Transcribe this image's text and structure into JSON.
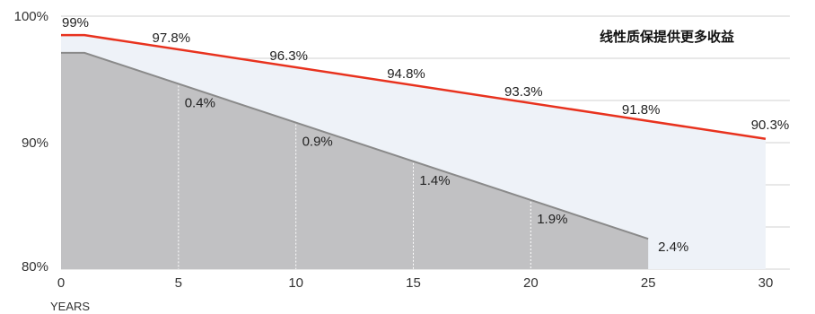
{
  "chart_data": {
    "type": "area",
    "title": "线性质保提供更多收益",
    "xlabel": "YEARS",
    "ylabel": "",
    "xlim": [
      0,
      30
    ],
    "ylim": [
      80,
      100
    ],
    "x_ticks": [
      "0",
      "5",
      "10",
      "15",
      "20",
      "25",
      "30"
    ],
    "y_ticks": [
      "80%",
      "90%",
      "100%"
    ],
    "grid": "horizontal",
    "series": [
      {
        "x": [
          0,
          1,
          30
        ],
        "values": [
          98.5,
          98.5,
          90.3
        ],
        "labels": [
          {
            "x": 0,
            "text": "99%"
          },
          {
            "x": 5,
            "text": "97.8%"
          },
          {
            "x": 10,
            "text": "96.3%"
          },
          {
            "x": 15,
            "text": "94.8%"
          },
          {
            "x": 20,
            "text": "93.3%"
          },
          {
            "x": 25,
            "text": "91.8%"
          },
          {
            "x": 30,
            "text": "90.3%"
          }
        ],
        "color": "#e8321e",
        "fill": "#eef2f8"
      },
      {
        "x": [
          0,
          1,
          25
        ],
        "values": [
          97.1,
          97.1,
          82.4
        ],
        "labels": [
          {
            "x": 5,
            "text": "0.4%"
          },
          {
            "x": 10,
            "text": "0.9%"
          },
          {
            "x": 15,
            "text": "1.4%"
          },
          {
            "x": 20,
            "text": "1.9%"
          },
          {
            "x": 25,
            "text": "2.4%"
          }
        ],
        "color": "#8a8a8a",
        "fill": "#c1c1c3"
      }
    ]
  }
}
